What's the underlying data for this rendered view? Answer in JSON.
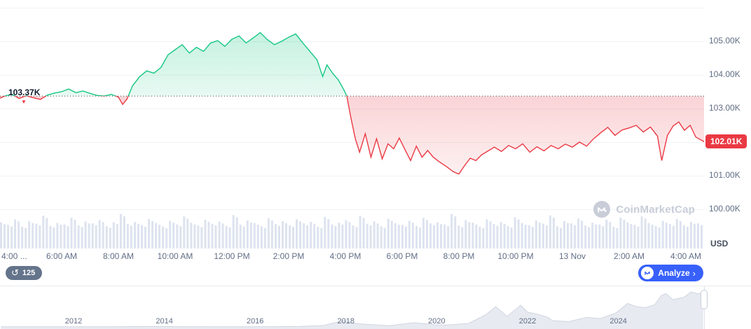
{
  "watermark": {
    "brand": "CoinMarketCap"
  },
  "toolbar": {
    "history_count": "125",
    "analyze_label": "Analyze"
  },
  "axis": {
    "unit": "USD"
  },
  "icons": {
    "history": "↺",
    "chevron_right": "›",
    "down_arrow": "▼"
  },
  "chart_data": [
    {
      "type": "line",
      "name": "btc-intraday-price",
      "unit": "USD",
      "baseline": {
        "value": 103.37,
        "label": "103.37K"
      },
      "last": {
        "value": 102.01,
        "label": "102.01K"
      },
      "ylim": [
        99.8,
        106.3
      ],
      "grid": true,
      "colors": {
        "up": "#16c784",
        "down": "#ea3943",
        "grid": "#eff2f5",
        "baseline": "#3c4350"
      },
      "y_ticks": [
        {
          "value": 106,
          "label": ""
        },
        {
          "value": 105,
          "label": "105.00K"
        },
        {
          "value": 104,
          "label": "104.00K"
        },
        {
          "value": 103,
          "label": "103.00K"
        },
        {
          "value": 102,
          "label": ""
        },
        {
          "value": 101,
          "label": "101.00K"
        },
        {
          "value": 100,
          "label": "100.00K"
        }
      ],
      "x_ticks": [
        {
          "t": 0,
          "label": "4:00 ...",
          "edge": true
        },
        {
          "t": 2,
          "label": "6:00 AM"
        },
        {
          "t": 4,
          "label": "8:00 AM"
        },
        {
          "t": 6,
          "label": "10:00 AM"
        },
        {
          "t": 8,
          "label": "12:00 PM"
        },
        {
          "t": 10,
          "label": "2:00 PM"
        },
        {
          "t": 12,
          "label": "4:00 PM"
        },
        {
          "t": 14,
          "label": "6:00 PM"
        },
        {
          "t": 16,
          "label": "8:00 PM"
        },
        {
          "t": 18,
          "label": "10:00 PM"
        },
        {
          "t": 20,
          "label": "13 Nov"
        },
        {
          "t": 22,
          "label": "2:00 AM"
        },
        {
          "t": 24,
          "label": "4:00 AM"
        }
      ],
      "points": [
        [
          -0.2,
          103.3
        ],
        [
          0,
          103.37
        ],
        [
          0.25,
          103.42
        ],
        [
          0.5,
          103.3
        ],
        [
          0.75,
          103.38
        ],
        [
          1,
          103.32
        ],
        [
          1.25,
          103.27
        ],
        [
          1.5,
          103.4
        ],
        [
          1.75,
          103.46
        ],
        [
          2,
          103.5
        ],
        [
          2.25,
          103.58
        ],
        [
          2.5,
          103.47
        ],
        [
          2.75,
          103.52
        ],
        [
          3,
          103.45
        ],
        [
          3.25,
          103.39
        ],
        [
          3.5,
          103.37
        ],
        [
          3.75,
          103.42
        ],
        [
          4,
          103.34
        ],
        [
          4.15,
          103.12
        ],
        [
          4.3,
          103.28
        ],
        [
          4.5,
          103.68
        ],
        [
          4.75,
          103.95
        ],
        [
          5,
          104.12
        ],
        [
          5.25,
          104.05
        ],
        [
          5.5,
          104.22
        ],
        [
          5.75,
          104.6
        ],
        [
          6,
          104.75
        ],
        [
          6.25,
          104.9
        ],
        [
          6.5,
          104.65
        ],
        [
          6.75,
          104.82
        ],
        [
          7,
          104.7
        ],
        [
          7.25,
          104.95
        ],
        [
          7.5,
          105.02
        ],
        [
          7.75,
          104.85
        ],
        [
          8,
          105.06
        ],
        [
          8.25,
          105.16
        ],
        [
          8.5,
          104.95
        ],
        [
          8.75,
          105.1
        ],
        [
          9,
          105.26
        ],
        [
          9.25,
          105.05
        ],
        [
          9.5,
          104.9
        ],
        [
          9.75,
          105.0
        ],
        [
          10,
          105.12
        ],
        [
          10.25,
          105.22
        ],
        [
          10.5,
          104.95
        ],
        [
          10.75,
          104.7
        ],
        [
          11,
          104.45
        ],
        [
          11.2,
          103.95
        ],
        [
          11.35,
          104.3
        ],
        [
          11.55,
          104.05
        ],
        [
          11.75,
          103.85
        ],
        [
          11.95,
          103.55
        ],
        [
          12.05,
          103.37
        ],
        [
          12.2,
          102.7
        ],
        [
          12.35,
          102.1
        ],
        [
          12.5,
          101.7
        ],
        [
          12.7,
          102.25
        ],
        [
          12.9,
          101.55
        ],
        [
          13.1,
          102.1
        ],
        [
          13.3,
          101.5
        ],
        [
          13.5,
          101.95
        ],
        [
          13.7,
          101.8
        ],
        [
          13.9,
          102.12
        ],
        [
          14.1,
          101.78
        ],
        [
          14.3,
          101.45
        ],
        [
          14.5,
          101.88
        ],
        [
          14.7,
          101.55
        ],
        [
          14.9,
          101.75
        ],
        [
          15.1,
          101.55
        ],
        [
          15.3,
          101.42
        ],
        [
          15.55,
          101.28
        ],
        [
          15.8,
          101.12
        ],
        [
          16,
          101.05
        ],
        [
          16.2,
          101.3
        ],
        [
          16.4,
          101.52
        ],
        [
          16.6,
          101.45
        ],
        [
          16.8,
          101.62
        ],
        [
          17,
          101.72
        ],
        [
          17.25,
          101.85
        ],
        [
          17.5,
          101.72
        ],
        [
          17.75,
          101.9
        ],
        [
          18,
          101.8
        ],
        [
          18.25,
          101.95
        ],
        [
          18.5,
          101.7
        ],
        [
          18.75,
          101.86
        ],
        [
          19,
          101.74
        ],
        [
          19.25,
          101.9
        ],
        [
          19.5,
          101.8
        ],
        [
          19.75,
          101.94
        ],
        [
          20,
          101.85
        ],
        [
          20.25,
          102.0
        ],
        [
          20.5,
          101.88
        ],
        [
          20.75,
          102.1
        ],
        [
          21,
          102.28
        ],
        [
          21.25,
          102.44
        ],
        [
          21.5,
          102.2
        ],
        [
          21.75,
          102.36
        ],
        [
          22,
          102.42
        ],
        [
          22.25,
          102.5
        ],
        [
          22.5,
          102.3
        ],
        [
          22.75,
          102.45
        ],
        [
          23,
          102.18
        ],
        [
          23.15,
          101.45
        ],
        [
          23.35,
          102.2
        ],
        [
          23.55,
          102.48
        ],
        [
          23.75,
          102.6
        ],
        [
          23.95,
          102.35
        ],
        [
          24.15,
          102.5
        ],
        [
          24.35,
          102.15
        ],
        [
          24.65,
          102.01
        ]
      ]
    },
    {
      "type": "bar",
      "name": "volume",
      "color": "#dde3ef",
      "values": [
        0.72,
        0.65,
        0.8,
        0.6,
        0.75,
        0.68,
        0.9,
        0.62,
        0.7,
        0.66,
        0.85,
        0.63,
        0.74,
        0.69,
        0.78,
        0.61,
        0.72,
        0.95,
        0.67,
        0.73,
        0.64,
        0.81,
        0.7,
        0.6,
        0.76,
        0.66,
        0.88,
        0.71,
        0.63,
        0.79,
        0.68,
        0.74,
        0.62,
        0.92,
        0.65,
        0.77,
        0.7,
        0.61,
        0.83,
        0.67,
        0.75,
        0.64,
        0.8,
        0.69,
        0.73,
        0.6,
        0.87,
        0.66,
        0.71,
        0.78,
        0.63,
        0.9,
        0.68,
        0.74,
        0.61,
        0.82,
        0.7,
        0.65,
        0.76,
        0.62,
        0.84,
        0.69,
        0.72,
        0.66,
        0.95,
        0.63,
        0.78,
        0.71,
        0.6,
        0.8,
        0.67,
        0.73,
        0.62,
        0.86,
        0.7,
        0.64,
        0.77,
        0.68,
        0.91,
        0.61,
        0.75,
        0.69,
        0.82,
        0.63,
        0.71,
        0.66,
        0.79,
        0.6,
        0.85,
        0.72,
        0.65,
        0.88,
        0.7,
        0.62,
        0.76,
        0.67,
        0.81,
        0.64,
        0.73,
        0.69
      ]
    },
    {
      "type": "area",
      "name": "all-time-history-brush",
      "color": "#e7eaf1",
      "stroke": "#d0d6e0",
      "year_ticks": [
        "2012",
        "2014",
        "2016",
        "2018",
        "2020",
        "2022",
        "2024"
      ],
      "points": [
        [
          2010.4,
          0.004
        ],
        [
          2011.5,
          0.004
        ],
        [
          2012,
          0.004
        ],
        [
          2012.8,
          0.005
        ],
        [
          2013.3,
          0.01
        ],
        [
          2013.92,
          0.012
        ],
        [
          2014.3,
          0.007
        ],
        [
          2015,
          0.004
        ],
        [
          2015.8,
          0.005
        ],
        [
          2016.5,
          0.008
        ],
        [
          2017,
          0.015
        ],
        [
          2017.5,
          0.04
        ],
        [
          2017.95,
          0.18
        ],
        [
          2018.15,
          0.1
        ],
        [
          2018.5,
          0.07
        ],
        [
          2018.95,
          0.035
        ],
        [
          2019.5,
          0.12
        ],
        [
          2019.95,
          0.065
        ],
        [
          2020.25,
          0.055
        ],
        [
          2020.7,
          0.1
        ],
        [
          2020.95,
          0.26
        ],
        [
          2021.1,
          0.37
        ],
        [
          2021.3,
          0.58
        ],
        [
          2021.55,
          0.3
        ],
        [
          2021.85,
          0.62
        ],
        [
          2022.0,
          0.42
        ],
        [
          2022.2,
          0.37
        ],
        [
          2022.45,
          0.27
        ],
        [
          2022.55,
          0.18
        ],
        [
          2022.9,
          0.15
        ],
        [
          2023.1,
          0.21
        ],
        [
          2023.3,
          0.27
        ],
        [
          2023.6,
          0.24
        ],
        [
          2023.95,
          0.4
        ],
        [
          2024.2,
          0.67
        ],
        [
          2024.4,
          0.58
        ],
        [
          2024.6,
          0.55
        ],
        [
          2024.8,
          0.63
        ],
        [
          2024.95,
          0.9
        ],
        [
          2025.05,
          0.95
        ],
        [
          2025.2,
          0.78
        ],
        [
          2025.45,
          0.85
        ],
        [
          2025.6,
          1.0
        ],
        [
          2025.75,
          0.95
        ],
        [
          2025.87,
          0.97
        ]
      ]
    }
  ]
}
